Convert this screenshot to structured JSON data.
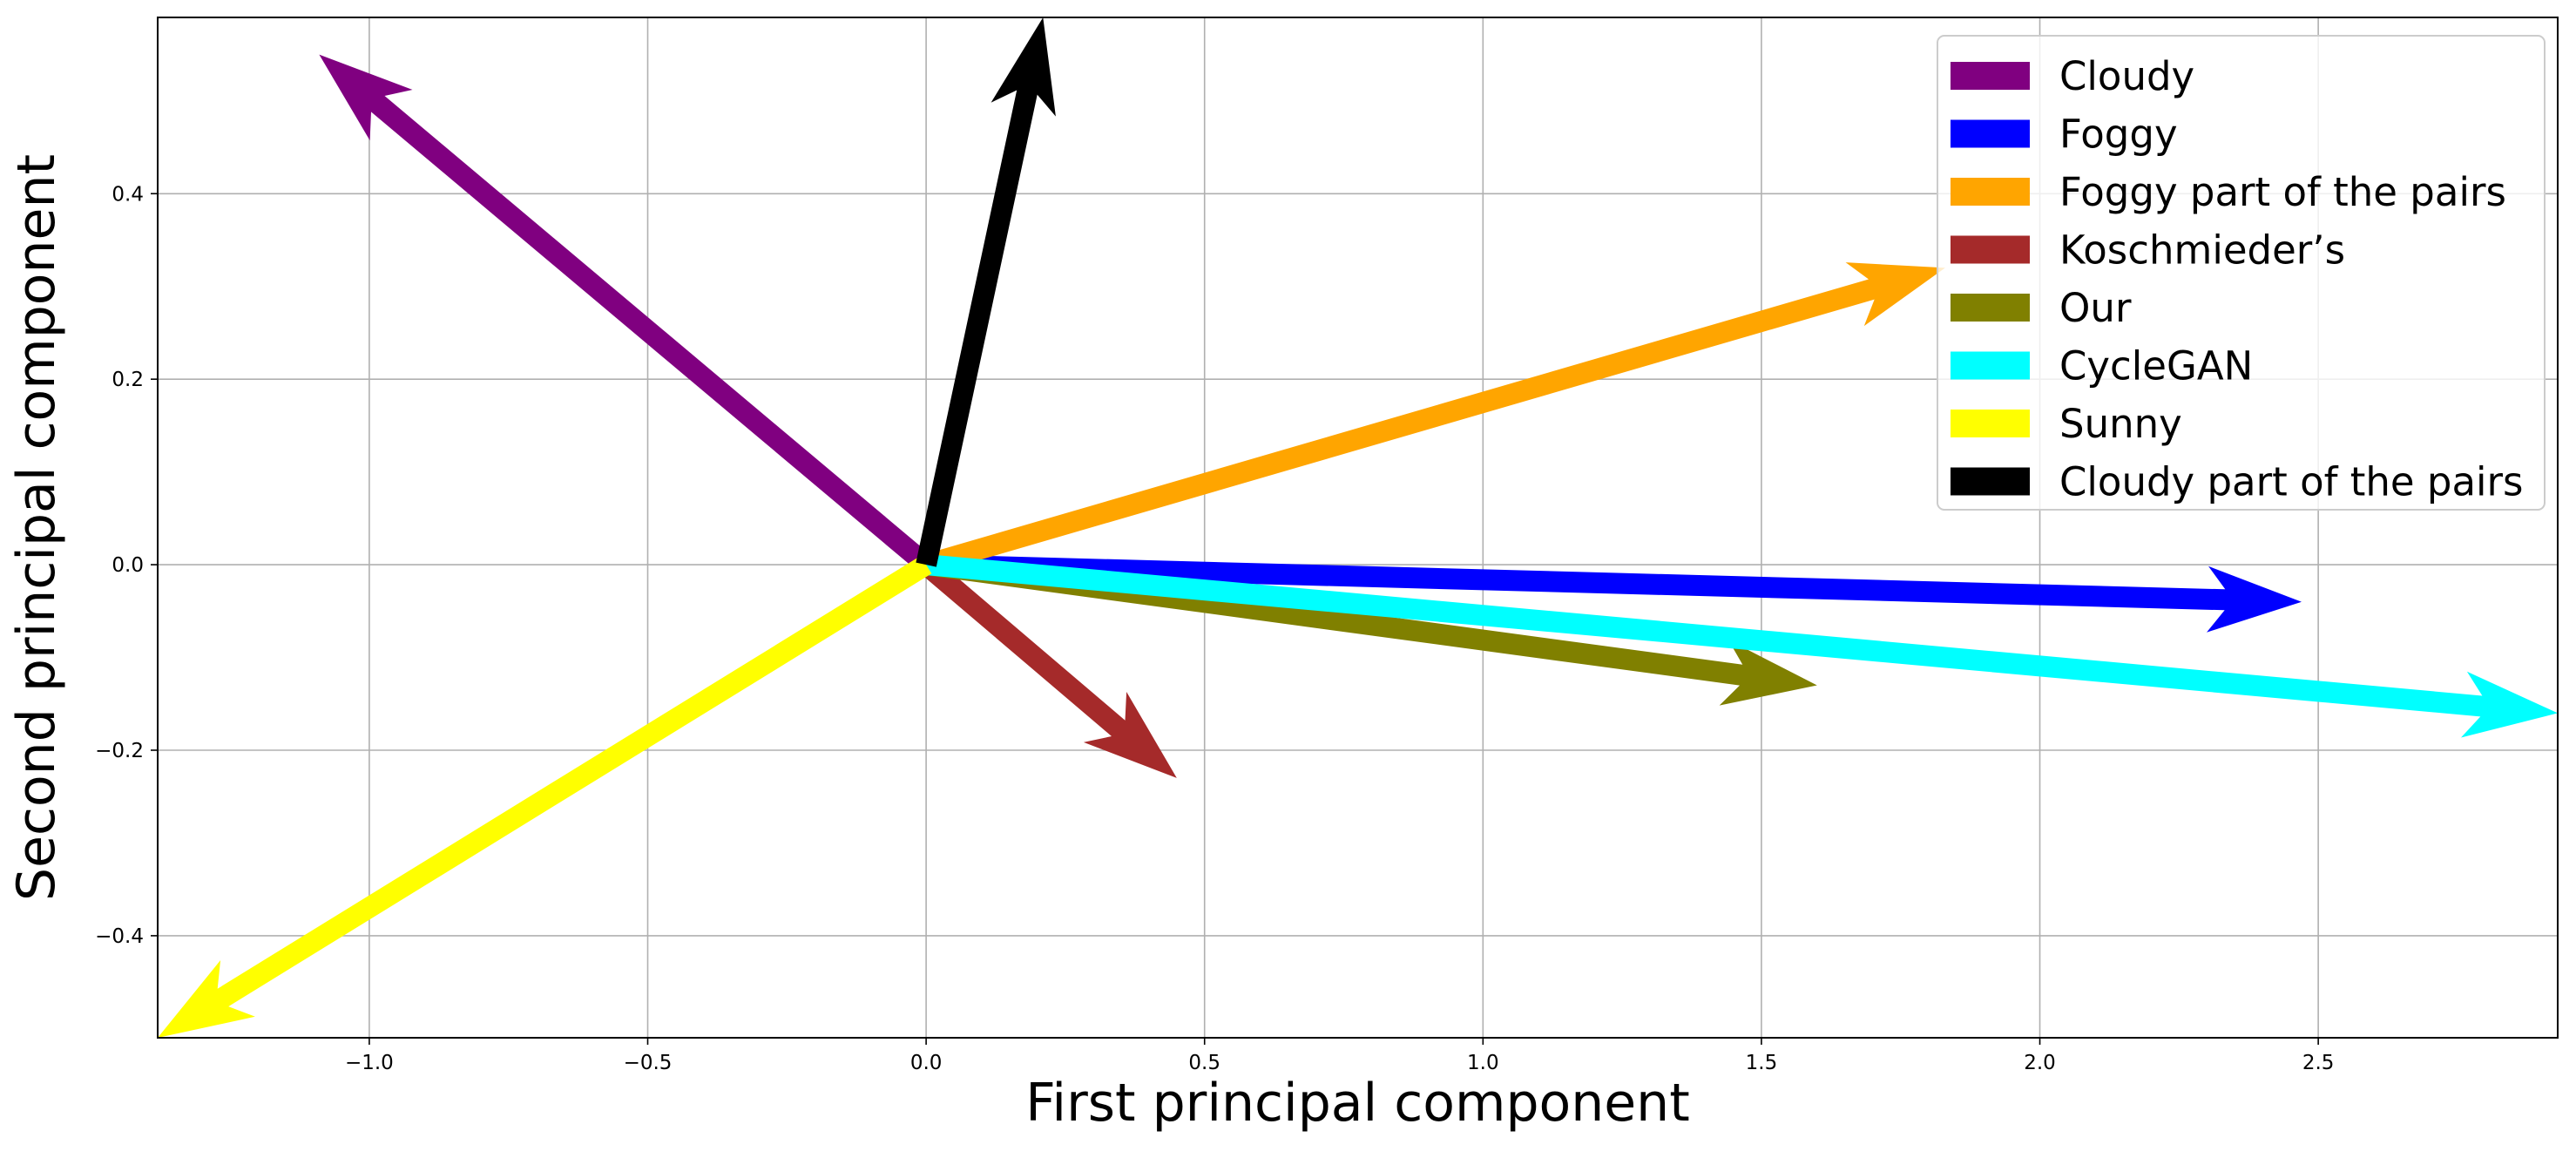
{
  "chart_data": {
    "type": "arrows",
    "title": "",
    "xlabel": "First principal component",
    "ylabel": "Second principal component",
    "xlim": [
      -1.38,
      2.93
    ],
    "ylim": [
      -0.51,
      0.59
    ],
    "xticks": [
      -1.0,
      -0.5,
      0.0,
      0.5,
      1.0,
      1.5,
      2.0,
      2.5
    ],
    "xtick_labels": [
      "−1.0",
      "−0.5",
      "0.0",
      "0.5",
      "1.0",
      "1.5",
      "2.0",
      "2.5"
    ],
    "yticks": [
      -0.4,
      -0.2,
      0.0,
      0.2,
      0.4
    ],
    "ytick_labels": [
      "−0.4",
      "−0.2",
      "0.0",
      "0.2",
      "0.4"
    ],
    "grid": true,
    "legend_position": "top-right",
    "series": [
      {
        "name": "Cloudy",
        "color": "#800080",
        "x": -1.09,
        "y": 0.55
      },
      {
        "name": "Foggy",
        "color": "#0000ff",
        "x": 2.47,
        "y": -0.04
      },
      {
        "name": "Foggy part of the pairs",
        "color": "#ffa500",
        "x": 1.83,
        "y": 0.32
      },
      {
        "name": "Koschmieder’s",
        "color": "#a52a2a",
        "x": 0.45,
        "y": -0.23
      },
      {
        "name": "Our",
        "color": "#808000",
        "x": 1.6,
        "y": -0.13
      },
      {
        "name": "CycleGAN",
        "color": "#00ffff",
        "x": 2.93,
        "y": -0.16
      },
      {
        "name": "Sunny",
        "color": "#ffff00",
        "x": -1.38,
        "y": -0.51
      },
      {
        "name": "Cloudy part of the pairs",
        "color": "#000000",
        "x": 0.21,
        "y": 0.59
      }
    ]
  }
}
